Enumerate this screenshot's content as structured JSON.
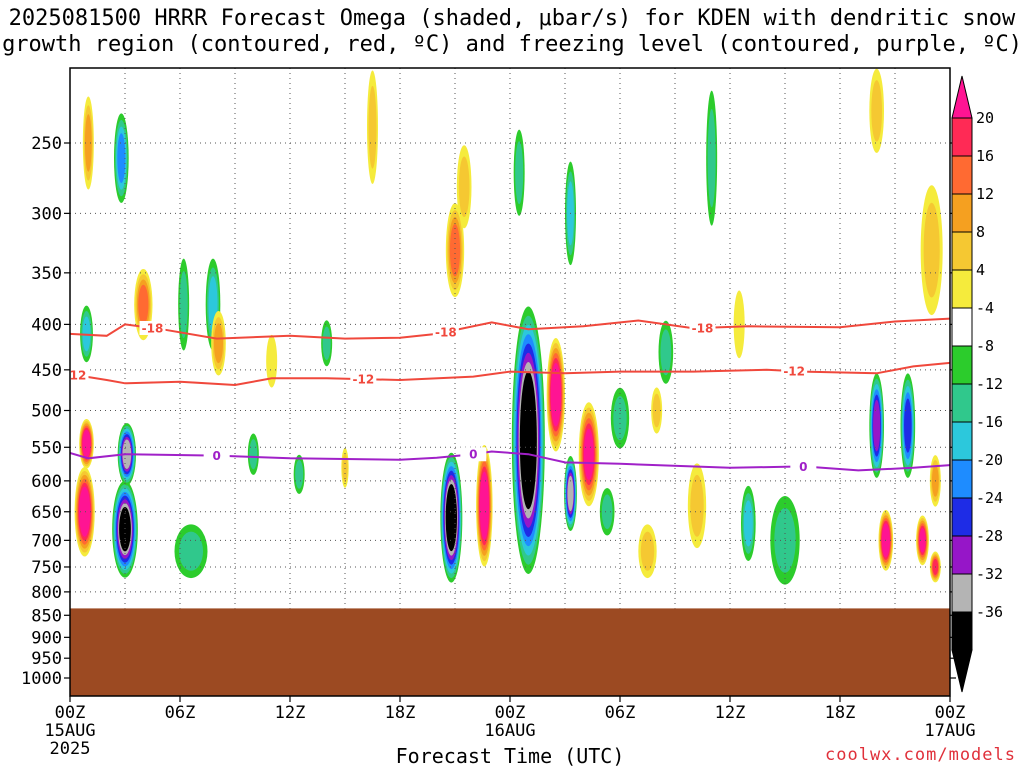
{
  "title": {
    "line1": "2025081500 HRRR Forecast Omega (shaded, μbar/s) for KDEN with dendritic snow",
    "line2": "growth region (contoured, red, ºC) and freezing level (contoured, purple, ºC)"
  },
  "xlabel": "Forecast Time (UTC)",
  "credit": "coolwx.com/models",
  "colors": {
    "terrain": "#9c4a22",
    "dgz_line": "#f0483c",
    "freezing_line": "#a020c8",
    "grid": "#555555"
  },
  "chart_data": {
    "type": "heatmap",
    "x_axis": {
      "ticks": [
        {
          "hour": 0,
          "label": "00Z",
          "sub": [
            "15AUG",
            "2025"
          ]
        },
        {
          "hour": 6,
          "label": "06Z",
          "sub": []
        },
        {
          "hour": 12,
          "label": "12Z",
          "sub": []
        },
        {
          "hour": 18,
          "label": "18Z",
          "sub": []
        },
        {
          "hour": 24,
          "label": "00Z",
          "sub": [
            "16AUG"
          ]
        },
        {
          "hour": 30,
          "label": "06Z",
          "sub": []
        },
        {
          "hour": 36,
          "label": "12Z",
          "sub": []
        },
        {
          "hour": 42,
          "label": "18Z",
          "sub": []
        },
        {
          "hour": 48,
          "label": "00Z",
          "sub": [
            "17AUG"
          ]
        }
      ],
      "range": [
        0,
        48
      ]
    },
    "y_axis": {
      "ticks": [
        250,
        300,
        350,
        400,
        450,
        500,
        550,
        600,
        650,
        700,
        750,
        800,
        850,
        900,
        950,
        1000
      ],
      "range": [
        200,
        1050
      ],
      "scale": "pressure"
    },
    "surface_pressure_hpa": 835,
    "colorbar": {
      "labels": [
        20,
        16,
        12,
        8,
        4,
        -4,
        -8,
        -12,
        -16,
        -20,
        -24,
        -28,
        -32,
        -36
      ],
      "colors": [
        "#ff2a55",
        "#ff6a32",
        "#f5a020",
        "#f5c832",
        "#f5eb3c",
        "#ffffff",
        "#2ccc2c",
        "#30c88c",
        "#2cc8dc",
        "#1e8cff",
        "#1e2ce6",
        "#9616c8",
        "#b4b4b4",
        "#000000"
      ],
      "top_arrow_color": "#ff1493",
      "bottom_arrow_color": "#000000"
    },
    "contours": [
      {
        "value": -18,
        "label": "-18",
        "type": "dgz",
        "points": [
          [
            0,
            410
          ],
          [
            2,
            412
          ],
          [
            3,
            400
          ],
          [
            5,
            405
          ],
          [
            8,
            415
          ],
          [
            12,
            412
          ],
          [
            15,
            415
          ],
          [
            18,
            414
          ],
          [
            20,
            410
          ],
          [
            23,
            398
          ],
          [
            25,
            405
          ],
          [
            28,
            402
          ],
          [
            31,
            396
          ],
          [
            34,
            404
          ],
          [
            37,
            402
          ],
          [
            42,
            403
          ],
          [
            45,
            397
          ],
          [
            48,
            394
          ]
        ],
        "label_hours": [
          4.5,
          20.5,
          34.5
        ]
      },
      {
        "value": -12,
        "label": "-12",
        "type": "dgz",
        "points": [
          [
            0,
            455
          ],
          [
            2,
            462
          ],
          [
            3,
            466
          ],
          [
            6,
            464
          ],
          [
            9,
            468
          ],
          [
            11,
            460
          ],
          [
            14,
            460
          ],
          [
            18,
            462
          ],
          [
            22,
            458
          ],
          [
            24,
            452
          ],
          [
            27,
            454
          ],
          [
            30,
            452
          ],
          [
            34,
            452
          ],
          [
            38,
            450
          ],
          [
            40,
            452
          ],
          [
            44,
            454
          ],
          [
            46,
            446
          ],
          [
            48,
            442
          ]
        ],
        "label_hours": [
          0.3,
          16,
          39.5
        ]
      },
      {
        "value": 0,
        "label": "0",
        "type": "freezing",
        "points": [
          [
            0,
            558
          ],
          [
            1,
            566
          ],
          [
            3,
            560
          ],
          [
            8,
            562
          ],
          [
            12,
            566
          ],
          [
            18,
            568
          ],
          [
            20,
            565
          ],
          [
            22,
            560
          ],
          [
            23,
            556
          ],
          [
            25,
            560
          ],
          [
            27,
            572
          ],
          [
            30,
            574
          ],
          [
            36,
            580
          ],
          [
            40,
            578
          ],
          [
            43,
            584
          ],
          [
            46,
            580
          ],
          [
            48,
            576
          ]
        ],
        "label_hours": [
          8,
          22,
          40
        ]
      }
    ],
    "omega_cells": [
      {
        "h": 0.8,
        "p": 650,
        "w": 0.55,
        "ph": 150,
        "v": 24
      },
      {
        "h": 0.9,
        "p": 545,
        "w": 0.4,
        "ph": 70,
        "v": 24
      },
      {
        "h": 3.0,
        "p": 680,
        "w": 0.7,
        "ph": 170,
        "v": -34
      },
      {
        "h": 3.1,
        "p": 560,
        "w": 0.5,
        "ph": 90,
        "v": -28
      },
      {
        "h": 4.0,
        "p": 380,
        "w": 0.5,
        "ph": 70,
        "v": 14
      },
      {
        "h": 2.8,
        "p": 260,
        "w": 0.4,
        "ph": 60,
        "v": -16
      },
      {
        "h": 1.0,
        "p": 250,
        "w": 0.3,
        "ph": 60,
        "v": 8
      },
      {
        "h": 0.9,
        "p": 410,
        "w": 0.35,
        "ph": 60,
        "v": -12
      },
      {
        "h": 6.6,
        "p": 720,
        "w": 0.9,
        "ph": 100,
        "v": -10
      },
      {
        "h": 6.2,
        "p": 380,
        "w": 0.3,
        "ph": 90,
        "v": -8
      },
      {
        "h": 7.8,
        "p": 380,
        "w": 0.4,
        "ph": 90,
        "v": -14
      },
      {
        "h": 8.1,
        "p": 420,
        "w": 0.4,
        "ph": 70,
        "v": 8
      },
      {
        "h": 10.0,
        "p": 560,
        "w": 0.3,
        "ph": 60,
        "v": -8
      },
      {
        "h": 11.0,
        "p": 440,
        "w": 0.3,
        "ph": 60,
        "v": 4
      },
      {
        "h": 12.5,
        "p": 590,
        "w": 0.3,
        "ph": 60,
        "v": -10
      },
      {
        "h": 14.0,
        "p": 420,
        "w": 0.3,
        "ph": 50,
        "v": -8
      },
      {
        "h": 15.0,
        "p": 580,
        "w": 0.2,
        "ph": 60,
        "v": 6
      },
      {
        "h": 20.8,
        "p": 660,
        "w": 0.6,
        "ph": 220,
        "v": -36
      },
      {
        "h": 22.6,
        "p": 640,
        "w": 0.45,
        "ph": 200,
        "v": 24
      },
      {
        "h": 21.5,
        "p": 280,
        "w": 0.4,
        "ph": 60,
        "v": 6
      },
      {
        "h": 21.0,
        "p": 330,
        "w": 0.5,
        "ph": 80,
        "v": 12
      },
      {
        "h": 25.0,
        "p": 540,
        "w": 0.9,
        "ph": 360,
        "v": -36
      },
      {
        "h": 24.5,
        "p": 270,
        "w": 0.3,
        "ph": 60,
        "v": -10
      },
      {
        "h": 26.5,
        "p": 480,
        "w": 0.5,
        "ph": 140,
        "v": 24
      },
      {
        "h": 28.3,
        "p": 560,
        "w": 0.55,
        "ph": 150,
        "v": 22
      },
      {
        "h": 27.3,
        "p": 620,
        "w": 0.35,
        "ph": 120,
        "v": -28
      },
      {
        "h": 27.3,
        "p": 300,
        "w": 0.3,
        "ph": 80,
        "v": -12
      },
      {
        "h": 30.0,
        "p": 510,
        "w": 0.5,
        "ph": 80,
        "v": -8
      },
      {
        "h": 29.3,
        "p": 650,
        "w": 0.4,
        "ph": 80,
        "v": -8
      },
      {
        "h": 31.5,
        "p": 720,
        "w": 0.5,
        "ph": 100,
        "v": 6
      },
      {
        "h": 32.5,
        "p": 430,
        "w": 0.4,
        "ph": 70,
        "v": -8
      },
      {
        "h": 32.0,
        "p": 500,
        "w": 0.3,
        "ph": 60,
        "v": 6
      },
      {
        "h": 34.2,
        "p": 640,
        "w": 0.5,
        "ph": 140,
        "v": 6
      },
      {
        "h": 35.0,
        "p": 260,
        "w": 0.3,
        "ph": 90,
        "v": -8
      },
      {
        "h": 36.5,
        "p": 400,
        "w": 0.3,
        "ph": 70,
        "v": 4
      },
      {
        "h": 37.0,
        "p": 670,
        "w": 0.4,
        "ph": 130,
        "v": -14
      },
      {
        "h": 39.0,
        "p": 700,
        "w": 0.8,
        "ph": 160,
        "v": -10
      },
      {
        "h": 44.0,
        "p": 520,
        "w": 0.4,
        "ph": 140,
        "v": -24
      },
      {
        "h": 44.5,
        "p": 700,
        "w": 0.4,
        "ph": 110,
        "v": 24
      },
      {
        "h": 46.5,
        "p": 700,
        "w": 0.35,
        "ph": 90,
        "v": 22
      },
      {
        "h": 45.7,
        "p": 520,
        "w": 0.4,
        "ph": 140,
        "v": -22
      },
      {
        "h": 47.2,
        "p": 600,
        "w": 0.3,
        "ph": 80,
        "v": 8
      },
      {
        "h": 47.2,
        "p": 750,
        "w": 0.3,
        "ph": 60,
        "v": 16
      },
      {
        "h": 47.0,
        "p": 330,
        "w": 0.6,
        "ph": 110,
        "v": 6
      },
      {
        "h": 44.0,
        "p": 230,
        "w": 0.4,
        "ph": 50,
        "v": 6
      },
      {
        "h": 16.5,
        "p": 240,
        "w": 0.3,
        "ph": 70,
        "v": 6
      }
    ]
  }
}
